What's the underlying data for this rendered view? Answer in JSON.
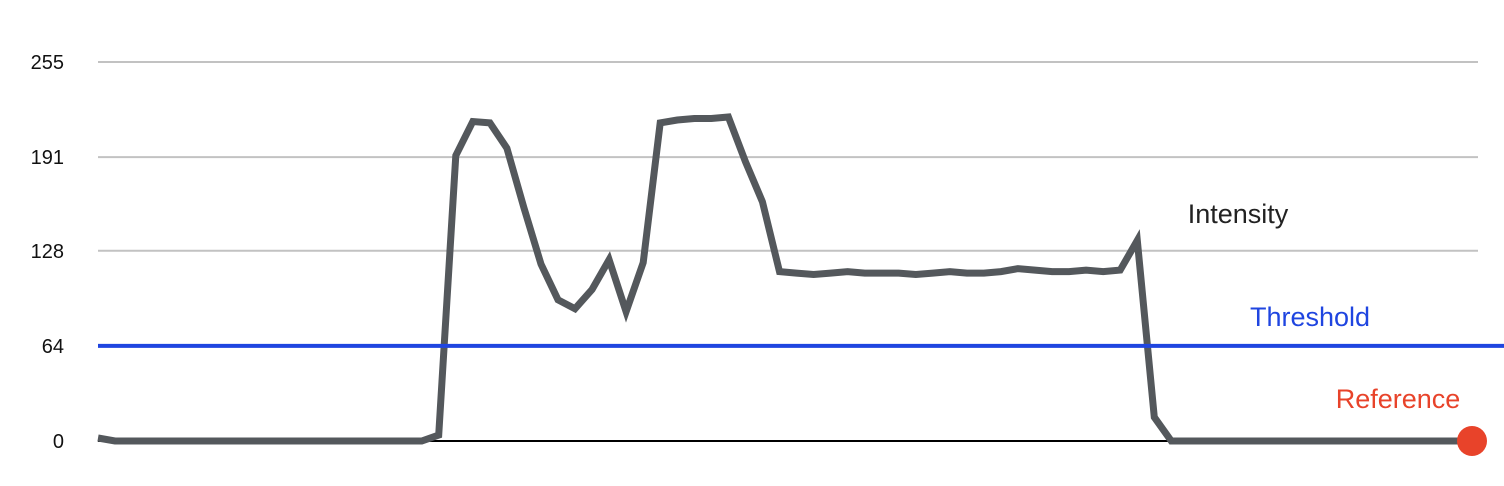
{
  "chart_data": {
    "type": "line",
    "title": "",
    "xlabel": "",
    "ylabel": "",
    "ylim": [
      0,
      255
    ],
    "y_ticks": [
      "255",
      "191",
      "128",
      "64",
      "0"
    ],
    "grid": true,
    "series": [
      {
        "name": "Intensity",
        "color": "#54585c",
        "values": [
          2,
          0,
          0,
          0,
          0,
          0,
          0,
          0,
          0,
          0,
          0,
          0,
          0,
          0,
          0,
          0,
          0,
          0,
          0,
          0,
          4,
          192,
          215,
          214,
          197,
          157,
          119,
          95,
          89,
          102,
          122,
          87,
          120,
          214,
          216,
          217,
          217,
          218,
          188,
          161,
          114,
          113,
          112,
          113,
          114,
          113,
          113,
          113,
          112,
          113,
          114,
          113,
          113,
          114,
          116,
          115,
          114,
          114,
          115,
          114,
          115,
          135,
          16,
          0,
          0,
          0,
          0,
          0,
          0,
          0,
          0,
          0,
          0,
          0,
          0,
          0,
          0,
          0,
          0,
          0,
          0,
          0
        ]
      },
      {
        "name": "Threshold",
        "color": "#1f45e0",
        "values": [
          64,
          64
        ]
      },
      {
        "name": "Reference",
        "color": "#e8432a",
        "values": [
          0
        ]
      }
    ]
  }
}
